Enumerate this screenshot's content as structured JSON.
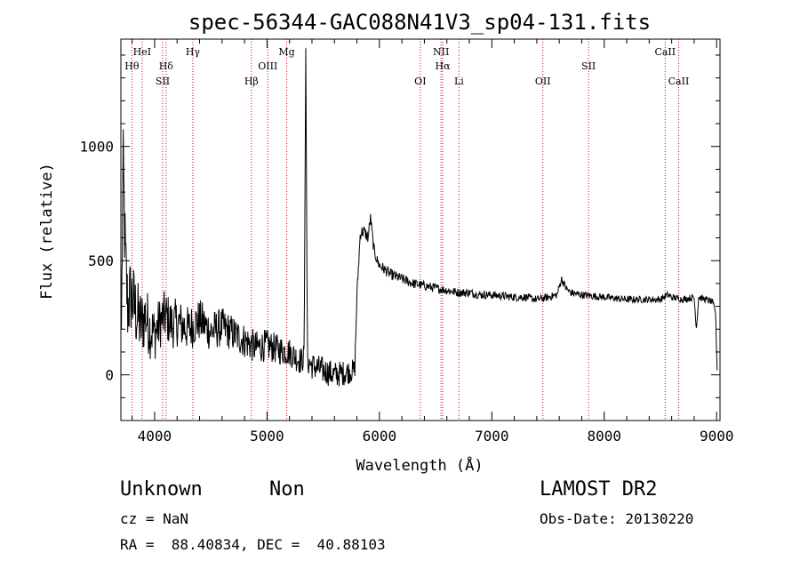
{
  "chart_data": {
    "type": "line",
    "title": "spec-56344-GAC088N41V3_sp04-131.fits",
    "xlabel": "Wavelength (Å)",
    "ylabel": "Flux (relative)",
    "xlim": [
      3700,
      9030
    ],
    "ylim": [
      -200,
      1470
    ],
    "xticks": [
      4000,
      5000,
      6000,
      7000,
      8000,
      9000
    ],
    "yticks": [
      0,
      500,
      1000
    ],
    "line_color": "#000000",
    "marker_color": "#cc0000",
    "lines": [
      {
        "label": "Hθ",
        "x": 3798,
        "row": 1
      },
      {
        "label": "HeI",
        "x": 3889,
        "row": 0
      },
      {
        "label": "SII",
        "x": 4072,
        "row": 2
      },
      {
        "label": "Hδ",
        "x": 4102,
        "row": 1
      },
      {
        "label": "Hγ",
        "x": 4340,
        "row": 0
      },
      {
        "label": "Hβ",
        "x": 4861,
        "row": 2
      },
      {
        "label": "OIII",
        "x": 5007,
        "row": 1
      },
      {
        "label": "Mg",
        "x": 5175,
        "row": 0
      },
      {
        "label": "OI",
        "x": 6364,
        "row": 2
      },
      {
        "label": "NII",
        "x": 6548,
        "row": 0
      },
      {
        "label": "Hα",
        "x": 6563,
        "row": 1
      },
      {
        "label": "Li",
        "x": 6708,
        "row": 2
      },
      {
        "label": "OII",
        "x": 7454,
        "row": 2
      },
      {
        "label": "SII",
        "x": 7861,
        "row": 1
      },
      {
        "label": "CaII",
        "x": 8542,
        "row": 0
      },
      {
        "label": "CaII",
        "x": 8662,
        "row": 2
      }
    ],
    "spectrum_anchors": {
      "x": [
        3705,
        3720,
        3740,
        3760,
        3790,
        3820,
        3850,
        3880,
        3920,
        3960,
        4000,
        4060,
        4100,
        4150,
        4200,
        4300,
        4400,
        4500,
        4600,
        4700,
        4800,
        4900,
        5000,
        5100,
        5200,
        5300,
        5330,
        5345,
        5360,
        5400,
        5500,
        5600,
        5700,
        5780,
        5800,
        5830,
        5860,
        5900,
        5920,
        5950,
        5980,
        6000,
        6050,
        6100,
        6200,
        6300,
        6400,
        6500,
        6600,
        6700,
        6800,
        6900,
        7000,
        7100,
        7200,
        7300,
        7400,
        7500,
        7580,
        7620,
        7660,
        7700,
        7800,
        7900,
        8000,
        8100,
        8200,
        8300,
        8400,
        8500,
        8560,
        8600,
        8700,
        8800,
        8820,
        8840,
        8900,
        8960,
        8990,
        9005
      ],
      "y": [
        200,
        900,
        500,
        300,
        350,
        300,
        250,
        220,
        260,
        200,
        180,
        240,
        260,
        220,
        230,
        200,
        240,
        190,
        210,
        180,
        150,
        120,
        130,
        110,
        100,
        60,
        80,
        1430,
        60,
        40,
        20,
        0,
        10,
        20,
        350,
        620,
        630,
        600,
        690,
        550,
        500,
        480,
        460,
        440,
        420,
        400,
        390,
        380,
        370,
        360,
        360,
        350,
        350,
        345,
        340,
        340,
        330,
        340,
        350,
        420,
        380,
        360,
        350,
        345,
        340,
        335,
        330,
        330,
        330,
        330,
        350,
        340,
        330,
        340,
        200,
        340,
        330,
        320,
        280,
        20
      ],
      "noise": [
        [
          3705,
          200
        ],
        [
          3800,
          180
        ],
        [
          3900,
          150
        ],
        [
          4000,
          120
        ],
        [
          4300,
          100
        ],
        [
          4700,
          80
        ],
        [
          5000,
          70
        ],
        [
          5300,
          60
        ],
        [
          5600,
          60
        ],
        [
          5780,
          50
        ],
        [
          5800,
          30
        ],
        [
          6000,
          25
        ],
        [
          6500,
          20
        ],
        [
          7000,
          18
        ],
        [
          8000,
          16
        ],
        [
          9005,
          14
        ]
      ]
    }
  },
  "info": {
    "class": "Unknown",
    "subclass": "Non",
    "survey": "LAMOST DR2",
    "cz": "cz = NaN",
    "obs_date": "Obs-Date: 20130220",
    "coords": "RA =  88.40834, DEC =  40.88103"
  }
}
